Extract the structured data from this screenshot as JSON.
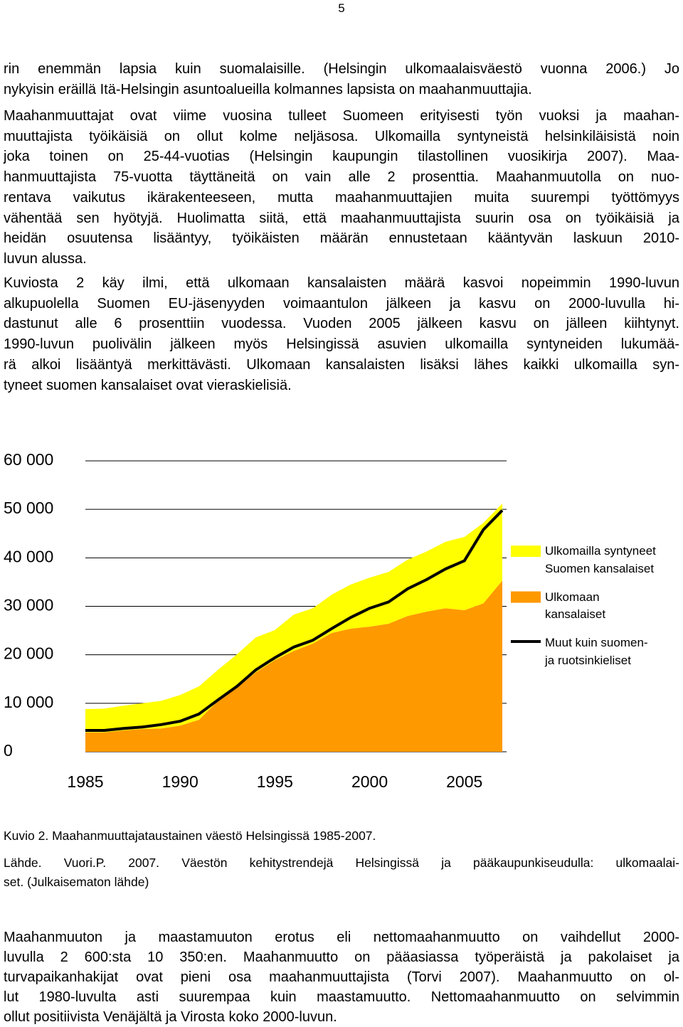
{
  "page_number": "5",
  "paragraphs_top": [
    [
      "rin enemmän lapsia kuin suomalaisille. (Helsingin ulkomaalaisväestö vuonna 2006.) Jo",
      "nykyisin eräillä Itä-Helsingin asuntoalueilla kolmannes lapsista on maahanmuuttajia."
    ],
    [
      "Maahanmuuttajat ovat viime vuosina tulleet Suomeen erityisesti työn vuoksi ja maahan-",
      "muuttajista työikäisiä on ollut kolme neljäsosa. Ulkomailla syntyneistä helsinkiläisistä noin",
      "joka toinen on 25-44-vuotias (Helsingin kaupungin tilastollinen vuosikirja 2007). Maa-",
      "hanmuuttajista 75-vuotta täyttäneitä on vain alle 2 prosenttia. Maahanmuutolla on nuo-",
      "rentava vaikutus ikärakenteeseen, mutta maahanmuuttajien muita suurempi työttömyys",
      "vähentää sen hyötyjä. Huolimatta siitä, että maahanmuuttajista suurin osa on työikäisiä ja",
      "heidän osuutensa lisääntyy, työikäisten määrän ennustetaan kääntyvän laskuun 2010-",
      "luvun alussa."
    ],
    [
      "Kuviosta 2 käy ilmi, että ulkomaan kansalaisten määrä kasvoi nopeimmin 1990-luvun",
      "alkupuolella Suomen EU-jäsenyyden voimaantulon jälkeen ja kasvu on 2000-luvulla hi-",
      "dastunut alle 6 prosenttiin vuodessa. Vuoden 2005 jälkeen kasvu on jälleen kiihtynyt.",
      "1990-luvun puolivälin jälkeen myös Helsingissä asuvien ulkomailla syntyneiden lukumää-",
      "rä alkoi lisääntyä merkittävästi. Ulkomaan kansalaisten lisäksi lähes kaikki ulkomailla syn-",
      "tyneet suomen kansalaiset ovat vieraskielisiä."
    ]
  ],
  "chart_data": {
    "type": "area",
    "stacked": true,
    "grid": true,
    "legend": "right",
    "x": [
      1985,
      1986,
      1987,
      1988,
      1989,
      1990,
      1991,
      1992,
      1993,
      1994,
      1995,
      1996,
      1997,
      1998,
      1999,
      2000,
      2001,
      2002,
      2003,
      2004,
      2005,
      2006,
      2007
    ],
    "xlim": [
      1985,
      2007
    ],
    "xticks": [
      1985,
      1990,
      1995,
      2000,
      2005
    ],
    "ylim": [
      0,
      60000
    ],
    "yticks": [
      {
        "value": 0,
        "label": "0"
      },
      {
        "value": 10000,
        "label": "10 000"
      },
      {
        "value": 20000,
        "label": "20 000"
      },
      {
        "value": 30000,
        "label": "30 000"
      },
      {
        "value": 40000,
        "label": "40 000"
      },
      {
        "value": 50000,
        "label": "50 000"
      },
      {
        "value": 60000,
        "label": "60 000"
      }
    ],
    "series": [
      {
        "name": "Ulkomaan\nkansalaiset",
        "color": "#ff9900",
        "kind": "area",
        "values": [
          4000,
          4000,
          4400,
          4700,
          4800,
          5400,
          6600,
          10500,
          13200,
          16400,
          18900,
          20800,
          22300,
          24500,
          25400,
          25800,
          26400,
          28000,
          28900,
          29600,
          29200,
          30600,
          35300
        ]
      },
      {
        "name": "Ulkomailla syntyneet\nSuomen kansalaiset",
        "color": "#ffff00",
        "kind": "area",
        "values": [
          4800,
          4900,
          5100,
          5300,
          5700,
          6300,
          6900,
          6400,
          6900,
          7200,
          6200,
          7500,
          7300,
          7900,
          9100,
          10100,
          10700,
          11600,
          12400,
          13700,
          15100,
          16600,
          15900
        ]
      },
      {
        "name": "Muut kuin suomen-\nja ruotsinkieliset",
        "color": "#000000",
        "kind": "line",
        "values": [
          4400,
          4400,
          4800,
          5100,
          5600,
          6300,
          7800,
          10700,
          13500,
          16900,
          19400,
          21600,
          23000,
          25400,
          27700,
          29600,
          30900,
          33600,
          35500,
          37700,
          39400,
          45800,
          49800
        ]
      }
    ]
  },
  "caption": "Kuvio 2. Maahanmuuttajataustainen väestö Helsingissä 1985-2007.",
  "source": [
    "Lähde. Vuori.P. 2007. Väestön kehitystrendejä Helsingissä ja pääkaupunkiseudulla: ulkomaalai-",
    "set. (Julkaisematon lähde)"
  ],
  "paragraphs_bottom": [
    [
      "Maahanmuuton ja maastamuuton erotus eli nettomaahanmuutto on vaihdellut 2000-",
      "luvulla 2 600:sta 10 350:en. Maahanmuutto on pääasiassa työperäistä ja pakolaiset ja",
      "turvapaikanhakijat ovat pieni osa maahanmuuttajista (Torvi 2007). Maahanmuutto on ol-",
      "lut 1980-luvulta asti suurempaa kuin maastamuutto. Nettomaahanmuutto on selvimmin",
      "ollut positiivista Venäjältä ja Virosta koko 2000-luvun."
    ]
  ]
}
